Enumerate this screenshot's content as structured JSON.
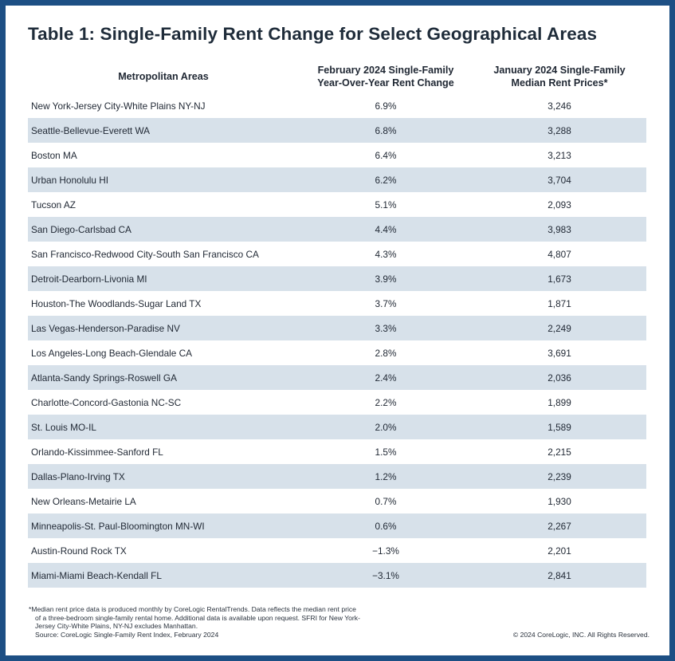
{
  "title": "Table 1: Single-Family Rent Change for Select Geographical Areas",
  "colors": {
    "frame": "#1d4f84",
    "stripe": "#d7e1ea",
    "background": "#ffffff"
  },
  "chart_data": {
    "type": "table",
    "title": "Table 1: Single-Family Rent Change for Select Geographical Areas",
    "columns": [
      "Metropolitan Areas",
      "February 2024 Single-Family\nYear-Over-Year Rent Change",
      "January 2024 Single-Family\nMedian Rent Prices*"
    ],
    "rows": [
      [
        "New York-Jersey City-White Plains NY-NJ",
        "6.9%",
        "3,246"
      ],
      [
        "Seattle-Bellevue-Everett WA",
        "6.8%",
        "3,288"
      ],
      [
        "Boston MA",
        "6.4%",
        "3,213"
      ],
      [
        "Urban Honolulu HI",
        "6.2%",
        "3,704"
      ],
      [
        "Tucson AZ",
        "5.1%",
        "2,093"
      ],
      [
        "San Diego-Carlsbad CA",
        "4.4%",
        "3,983"
      ],
      [
        "San Francisco-Redwood City-South San Francisco CA",
        "4.3%",
        "4,807"
      ],
      [
        "Detroit-Dearborn-Livonia MI",
        "3.9%",
        "1,673"
      ],
      [
        "Houston-The Woodlands-Sugar Land TX",
        "3.7%",
        "1,871"
      ],
      [
        "Las Vegas-Henderson-Paradise NV",
        "3.3%",
        "2,249"
      ],
      [
        "Los Angeles-Long Beach-Glendale CA",
        "2.8%",
        "3,691"
      ],
      [
        "Atlanta-Sandy Springs-Roswell GA",
        "2.4%",
        "2,036"
      ],
      [
        "Charlotte-Concord-Gastonia NC-SC",
        "2.2%",
        "1,899"
      ],
      [
        "St. Louis MO-IL",
        "2.0%",
        "1,589"
      ],
      [
        "Orlando-Kissimmee-Sanford FL",
        "1.5%",
        "2,215"
      ],
      [
        "Dallas-Plano-Irving TX",
        "1.2%",
        "2,239"
      ],
      [
        "New Orleans-Metairie LA",
        "0.7%",
        "1,930"
      ],
      [
        "Minneapolis-St. Paul-Bloomington MN-WI",
        "0.6%",
        "2,267"
      ],
      [
        "Austin-Round Rock TX",
        "−1.3%",
        "2,201"
      ],
      [
        "Miami-Miami Beach-Kendall FL",
        "−3.1%",
        "2,841"
      ]
    ]
  },
  "footnote": {
    "lines": [
      "*Median rent price data is produced monthly by CoreLogic RentalTrends. Data reflects the median rent price",
      "of a three-bedroom single-family rental home. Additional data is available upon request. SFRI for New York-",
      "Jersey City-White Plains, NY-NJ excludes Manhattan.",
      "Source: CoreLogic Single-Family Rent Index, February 2024"
    ]
  },
  "copyright": "© 2024 CoreLogic, INC. All Rights Reserved."
}
